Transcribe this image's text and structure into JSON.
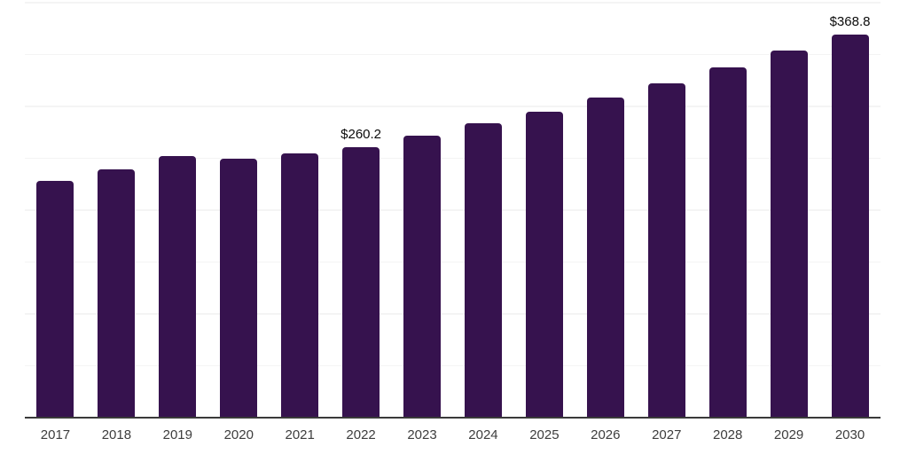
{
  "colors": {
    "background": "#ffffff",
    "bar": "#36124E",
    "gridline": "#f4f4f4",
    "axis_line": "#3a3a3a",
    "tick_label": "#3d3d3d",
    "data_label": "#0b0b0b"
  },
  "chart_data": {
    "type": "bar",
    "title": "",
    "xlabel": "",
    "ylabel": "",
    "categories": [
      "2017",
      "2018",
      "2019",
      "2020",
      "2021",
      "2022",
      "2023",
      "2024",
      "2025",
      "2026",
      "2027",
      "2028",
      "2029",
      "2030"
    ],
    "values": [
      227.1,
      238.6,
      251.1,
      248.5,
      253.6,
      260.2,
      271.2,
      282.5,
      294.3,
      307.9,
      321.4,
      336.4,
      352.7,
      368.8
    ],
    "annotations": [
      {
        "category": "2022",
        "text": "$260.2"
      },
      {
        "category": "2030",
        "text": "$368.8"
      }
    ],
    "ylim": [
      0,
      400
    ],
    "ytick_step": 50,
    "grid": true,
    "y_axis_tick_labels_visible": false,
    "legend": false
  }
}
